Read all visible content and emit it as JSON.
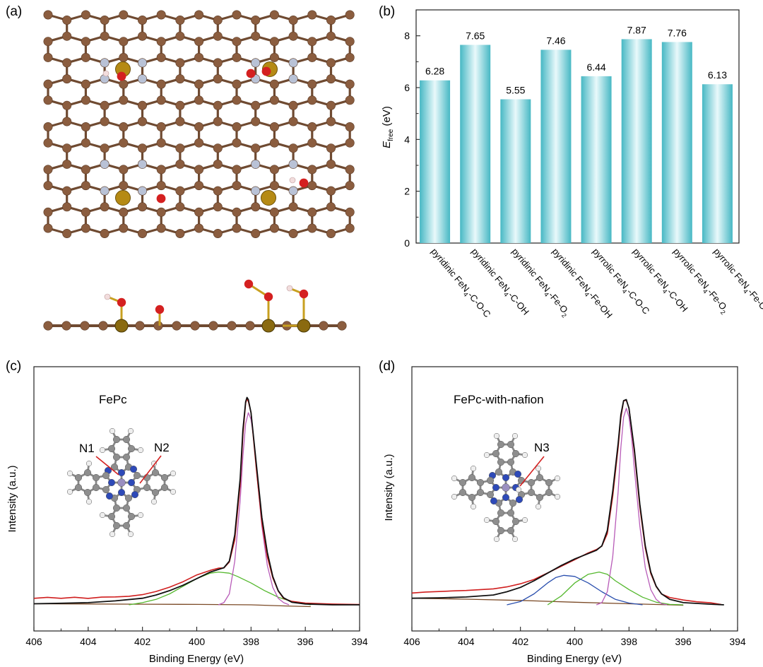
{
  "panel_labels": {
    "a": "(a)",
    "b": "(b)",
    "c": "(c)",
    "d": "(d)"
  },
  "colors": {
    "carbon": "#8b5d3f",
    "carbon_dark": "#6f4a31",
    "nitrogen": "#b9c2d6",
    "iron": "#b58a14",
    "oxygen": "#d42020",
    "hydrogen": "#f2dddd",
    "bar_edge": "#47b8c4",
    "bar_mid": "#e9f9fb",
    "raw": "#d01e1e",
    "envelope": "#111111",
    "peak_main": "#b85bb8",
    "peak_green": "#55b82e",
    "peak_blue": "#2a4fae",
    "background": "#7b4a26",
    "mol_c": "#8e8e8e",
    "mol_n": "#2e4ab8",
    "mol_h": "#eeeeee",
    "mol_fe": "#9a8fc0"
  },
  "chart_data": [
    {
      "type": "bar",
      "panel": "b",
      "categories": [
        {
          "prefix": "pyridinic FeN",
          "sub": "4",
          "suffix": "-C-O-C",
          "sub2": ""
        },
        {
          "prefix": "pyridinic FeN",
          "sub": "4",
          "suffix": "-C-OH",
          "sub2": ""
        },
        {
          "prefix": "pyridinic FeN",
          "sub": "4",
          "suffix": "-Fe-O",
          "sub2": "2"
        },
        {
          "prefix": "pyridinic FeN",
          "sub": "4",
          "suffix": "-Fe-OH",
          "sub2": ""
        },
        {
          "prefix": "pyrrolic FeN",
          "sub": "4",
          "suffix": "-C-O-C",
          "sub2": ""
        },
        {
          "prefix": "pyrrolic FeN",
          "sub": "4",
          "suffix": "-C-OH",
          "sub2": ""
        },
        {
          "prefix": "pyrrolic FeN",
          "sub": "4",
          "suffix": "-Fe-O",
          "sub2": "2"
        },
        {
          "prefix": "pyrrolic FeN",
          "sub": "4",
          "suffix": "-Fe-OH",
          "sub2": ""
        }
      ],
      "values": [
        6.28,
        7.65,
        5.55,
        7.46,
        6.44,
        7.87,
        7.76,
        6.13
      ],
      "value_labels": [
        "6.28",
        "7.65",
        "5.55",
        "7.46",
        "6.44",
        "7.87",
        "7.76",
        "6.13"
      ],
      "ylabel": {
        "main": "E",
        "sub": "free",
        "unit": " (eV)"
      },
      "ylim": [
        0,
        9
      ],
      "yticks": [
        0,
        2,
        4,
        6,
        8
      ],
      "ytick_labels": [
        "0",
        "2",
        "4",
        "6",
        "8"
      ]
    },
    {
      "type": "line",
      "panel": "c",
      "title": "FePc",
      "xlabel": "Binding Energy (eV)",
      "ylabel": "Intensity (a.u.)",
      "xlim": [
        406,
        394
      ],
      "ylim": [
        0,
        1.0
      ],
      "xticks": [
        406,
        404,
        402,
        400,
        398,
        396,
        394
      ],
      "xtick_labels": [
        "406",
        "404",
        "402",
        "400",
        "398",
        "396",
        "394"
      ],
      "annotations": [
        "N1",
        "N2"
      ],
      "series": [
        {
          "name": "raw",
          "points": [
            [
              406,
              0.026
            ],
            [
              405.5,
              0.031
            ],
            [
              405,
              0.027
            ],
            [
              404.5,
              0.033
            ],
            [
              404,
              0.029
            ],
            [
              403.5,
              0.036
            ],
            [
              403,
              0.038
            ],
            [
              402.5,
              0.042
            ],
            [
              402,
              0.05
            ],
            [
              401.5,
              0.065
            ],
            [
              401,
              0.085
            ],
            [
              400.5,
              0.11
            ],
            [
              400,
              0.14
            ],
            [
              399.5,
              0.16
            ],
            [
              399.2,
              0.165
            ],
            [
              399,
              0.17
            ],
            [
              398.8,
              0.2
            ],
            [
              398.6,
              0.3
            ],
            [
              398.4,
              0.55
            ],
            [
              398.3,
              0.78
            ],
            [
              398.2,
              0.92
            ],
            [
              398.15,
              0.945
            ],
            [
              398.1,
              0.935
            ],
            [
              398,
              0.88
            ],
            [
              397.8,
              0.62
            ],
            [
              397.6,
              0.38
            ],
            [
              397.4,
              0.22
            ],
            [
              397.2,
              0.12
            ],
            [
              397,
              0.06
            ],
            [
              396.8,
              0.03
            ],
            [
              396.5,
              0.012
            ],
            [
              396,
              0.004
            ],
            [
              395,
              0.0
            ],
            [
              394,
              0.0
            ]
          ]
        },
        {
          "name": "envelope",
          "points": [
            [
              406,
              0.005
            ],
            [
              405,
              0.007
            ],
            [
              404,
              0.01
            ],
            [
              403,
              0.018
            ],
            [
              402,
              0.03
            ],
            [
              401.5,
              0.045
            ],
            [
              401,
              0.065
            ],
            [
              400.5,
              0.09
            ],
            [
              400,
              0.12
            ],
            [
              399.5,
              0.15
            ],
            [
              399,
              0.17
            ],
            [
              398.8,
              0.2
            ],
            [
              398.6,
              0.32
            ],
            [
              398.4,
              0.58
            ],
            [
              398.3,
              0.8
            ],
            [
              398.2,
              0.93
            ],
            [
              398.15,
              0.95
            ],
            [
              398.1,
              0.94
            ],
            [
              398,
              0.88
            ],
            [
              397.8,
              0.64
            ],
            [
              397.6,
              0.4
            ],
            [
              397.4,
              0.24
            ],
            [
              397.2,
              0.13
            ],
            [
              397,
              0.065
            ],
            [
              396.8,
              0.032
            ],
            [
              396.5,
              0.012
            ],
            [
              396,
              0.004
            ],
            [
              395,
              0.0
            ],
            [
              394,
              0.0
            ]
          ]
        },
        {
          "name": "peak_main",
          "points": [
            [
              399.2,
              0.0
            ],
            [
              399,
              0.01
            ],
            [
              398.8,
              0.05
            ],
            [
              398.6,
              0.2
            ],
            [
              398.4,
              0.48
            ],
            [
              398.3,
              0.68
            ],
            [
              398.2,
              0.83
            ],
            [
              398.1,
              0.88
            ],
            [
              398,
              0.85
            ],
            [
              397.9,
              0.76
            ],
            [
              397.8,
              0.62
            ],
            [
              397.6,
              0.36
            ],
            [
              397.4,
              0.18
            ],
            [
              397.2,
              0.08
            ],
            [
              397,
              0.03
            ],
            [
              396.8,
              0.01
            ],
            [
              396.6,
              0.0
            ]
          ]
        },
        {
          "name": "peak_green",
          "points": [
            [
              402.5,
              0.0
            ],
            [
              402,
              0.01
            ],
            [
              401.5,
              0.025
            ],
            [
              401,
              0.05
            ],
            [
              400.5,
              0.085
            ],
            [
              400,
              0.12
            ],
            [
              399.5,
              0.145
            ],
            [
              399.2,
              0.15
            ],
            [
              398.8,
              0.145
            ],
            [
              398.5,
              0.13
            ],
            [
              398,
              0.1
            ],
            [
              397.5,
              0.065
            ],
            [
              397,
              0.035
            ],
            [
              396.5,
              0.015
            ],
            [
              396,
              0.005
            ],
            [
              395.8,
              0.0
            ]
          ]
        },
        {
          "name": "background",
          "points": [
            [
              406,
              0.005
            ],
            [
              404,
              0.004
            ],
            [
              402,
              0.003
            ],
            [
              400,
              0.002
            ],
            [
              398,
              0.0
            ],
            [
              396.5,
              -0.006
            ],
            [
              395.8,
              -0.008
            ]
          ]
        }
      ]
    },
    {
      "type": "line",
      "panel": "d",
      "title": "FePc-with-nafion",
      "xlabel": "Binding Energy (eV)",
      "ylabel": "Intensity (a.u.)",
      "xlim": [
        406,
        394
      ],
      "ylim": [
        0,
        1.0
      ],
      "xticks": [
        406,
        404,
        402,
        400,
        398,
        396,
        394
      ],
      "xtick_labels": [
        "406",
        "404",
        "402",
        "400",
        "398",
        "396",
        "394"
      ],
      "annotations": [
        "N3"
      ],
      "series": [
        {
          "name": "raw",
          "points": [
            [
              406,
              0.05
            ],
            [
              405.5,
              0.055
            ],
            [
              405,
              0.058
            ],
            [
              404.5,
              0.062
            ],
            [
              404,
              0.065
            ],
            [
              403.5,
              0.07
            ],
            [
              403,
              0.075
            ],
            [
              402.5,
              0.085
            ],
            [
              402,
              0.1
            ],
            [
              401.5,
              0.12
            ],
            [
              401,
              0.15
            ],
            [
              400.5,
              0.18
            ],
            [
              400,
              0.21
            ],
            [
              399.5,
              0.24
            ],
            [
              399.2,
              0.25
            ],
            [
              399,
              0.27
            ],
            [
              398.8,
              0.33
            ],
            [
              398.6,
              0.5
            ],
            [
              398.4,
              0.72
            ],
            [
              398.3,
              0.86
            ],
            [
              398.2,
              0.93
            ],
            [
              398.1,
              0.94
            ],
            [
              398,
              0.9
            ],
            [
              397.8,
              0.7
            ],
            [
              397.6,
              0.45
            ],
            [
              397.4,
              0.26
            ],
            [
              397.2,
              0.14
            ],
            [
              397,
              0.08
            ],
            [
              396.8,
              0.05
            ],
            [
              396.5,
              0.03
            ],
            [
              396,
              0.018
            ],
            [
              395.5,
              0.01
            ],
            [
              395,
              0.006
            ],
            [
              394.6,
              0.002
            ]
          ]
        },
        {
          "name": "envelope",
          "points": [
            [
              406,
              0.03
            ],
            [
              405,
              0.032
            ],
            [
              404,
              0.036
            ],
            [
              403,
              0.045
            ],
            [
              402.5,
              0.06
            ],
            [
              402,
              0.08
            ],
            [
              401.5,
              0.11
            ],
            [
              401,
              0.145
            ],
            [
              400.5,
              0.18
            ],
            [
              400,
              0.21
            ],
            [
              399.5,
              0.235
            ],
            [
              399.2,
              0.25
            ],
            [
              399,
              0.27
            ],
            [
              398.8,
              0.34
            ],
            [
              398.6,
              0.52
            ],
            [
              398.4,
              0.74
            ],
            [
              398.3,
              0.87
            ],
            [
              398.2,
              0.935
            ],
            [
              398.1,
              0.94
            ],
            [
              398,
              0.9
            ],
            [
              397.8,
              0.71
            ],
            [
              397.6,
              0.46
            ],
            [
              397.4,
              0.27
            ],
            [
              397.2,
              0.15
            ],
            [
              397,
              0.085
            ],
            [
              396.8,
              0.05
            ],
            [
              396.5,
              0.025
            ],
            [
              396,
              0.01
            ],
            [
              395,
              0.003
            ],
            [
              394.5,
              0.0
            ]
          ]
        },
        {
          "name": "peak_main",
          "points": [
            [
              399.2,
              0.0
            ],
            [
              399,
              0.01
            ],
            [
              398.8,
              0.06
            ],
            [
              398.6,
              0.22
            ],
            [
              398.4,
              0.52
            ],
            [
              398.3,
              0.72
            ],
            [
              398.2,
              0.86
            ],
            [
              398.1,
              0.9
            ],
            [
              398,
              0.86
            ],
            [
              397.9,
              0.76
            ],
            [
              397.8,
              0.62
            ],
            [
              397.6,
              0.36
            ],
            [
              397.4,
              0.17
            ],
            [
              397.2,
              0.07
            ],
            [
              397,
              0.025
            ],
            [
              396.8,
              0.005
            ],
            [
              396.6,
              0.0
            ]
          ]
        },
        {
          "name": "peak_green",
          "points": [
            [
              401,
              0.0
            ],
            [
              400.5,
              0.04
            ],
            [
              400,
              0.1
            ],
            [
              399.5,
              0.14
            ],
            [
              399.1,
              0.15
            ],
            [
              398.8,
              0.14
            ],
            [
              398.5,
              0.11
            ],
            [
              398,
              0.07
            ],
            [
              397.5,
              0.035
            ],
            [
              397,
              0.012
            ],
            [
              396.5,
              0.002
            ],
            [
              396,
              0.0
            ]
          ]
        },
        {
          "name": "peak_blue",
          "points": [
            [
              402.5,
              0.0
            ],
            [
              402,
              0.015
            ],
            [
              401.5,
              0.05
            ],
            [
              401,
              0.1
            ],
            [
              400.7,
              0.125
            ],
            [
              400.4,
              0.135
            ],
            [
              400,
              0.13
            ],
            [
              399.5,
              0.1
            ],
            [
              399,
              0.06
            ],
            [
              398.5,
              0.025
            ],
            [
              398,
              0.008
            ],
            [
              397.5,
              0.0
            ]
          ]
        },
        {
          "name": "background",
          "points": [
            [
              406,
              0.03
            ],
            [
              404,
              0.026
            ],
            [
              402,
              0.02
            ],
            [
              400,
              0.012
            ],
            [
              398,
              0.005
            ],
            [
              396.5,
              0.0
            ],
            [
              396,
              -0.002
            ]
          ]
        }
      ]
    }
  ]
}
